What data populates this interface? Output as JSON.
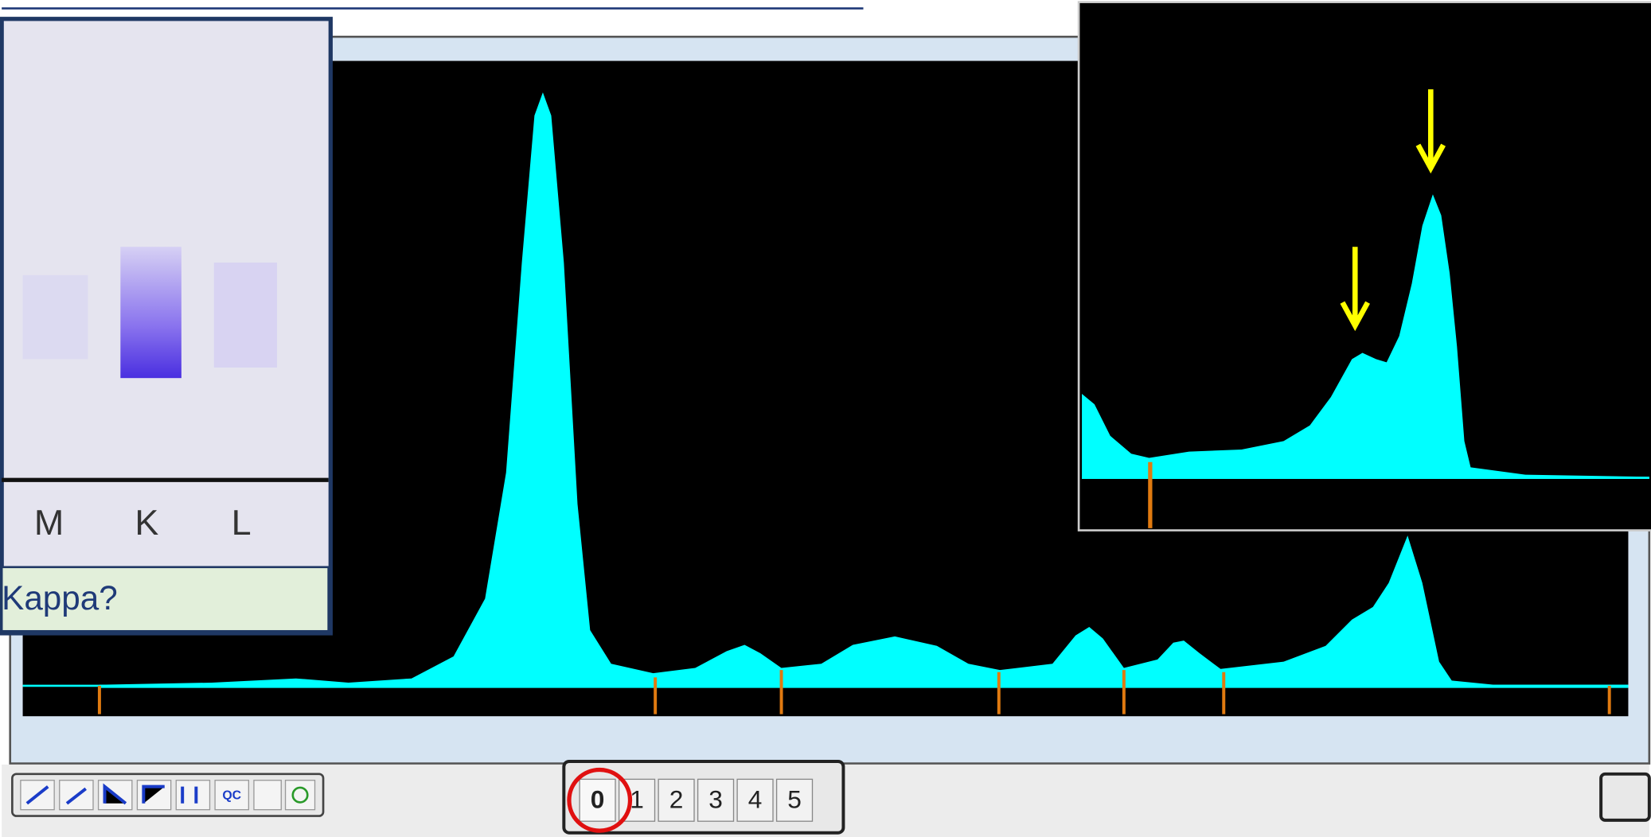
{
  "gel": {
    "lanes": [
      "M",
      "K",
      "L"
    ],
    "caption": "Kappa?"
  },
  "toolbar": {
    "tools": [
      "QC"
    ]
  },
  "pager": {
    "buttons": [
      "0",
      "1",
      "2",
      "3",
      "4",
      "5"
    ]
  }
}
